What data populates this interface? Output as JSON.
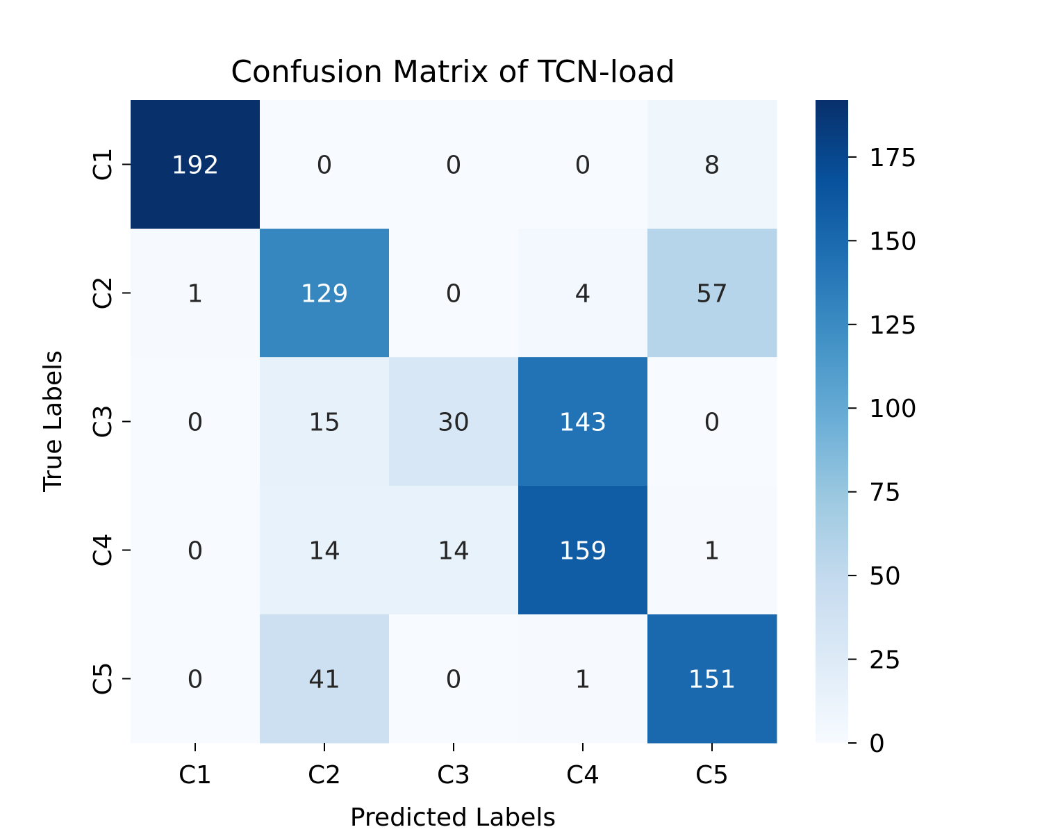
{
  "chart_data": {
    "type": "heatmap",
    "title": "Confusion Matrix of TCN-load",
    "xlabel": "Predicted Labels",
    "ylabel": "True Labels",
    "x_categories": [
      "C1",
      "C2",
      "C3",
      "C4",
      "C5"
    ],
    "y_categories": [
      "C1",
      "C2",
      "C3",
      "C4",
      "C5"
    ],
    "values": [
      [
        192,
        0,
        0,
        0,
        8
      ],
      [
        1,
        129,
        0,
        4,
        57
      ],
      [
        0,
        15,
        30,
        143,
        0
      ],
      [
        0,
        14,
        14,
        159,
        1
      ],
      [
        0,
        41,
        0,
        1,
        151
      ]
    ],
    "colorbar": {
      "colormap": "Blues",
      "vmin": 0,
      "vmax": 192,
      "ticks": [
        0,
        25,
        50,
        75,
        100,
        125,
        150,
        175
      ]
    }
  }
}
